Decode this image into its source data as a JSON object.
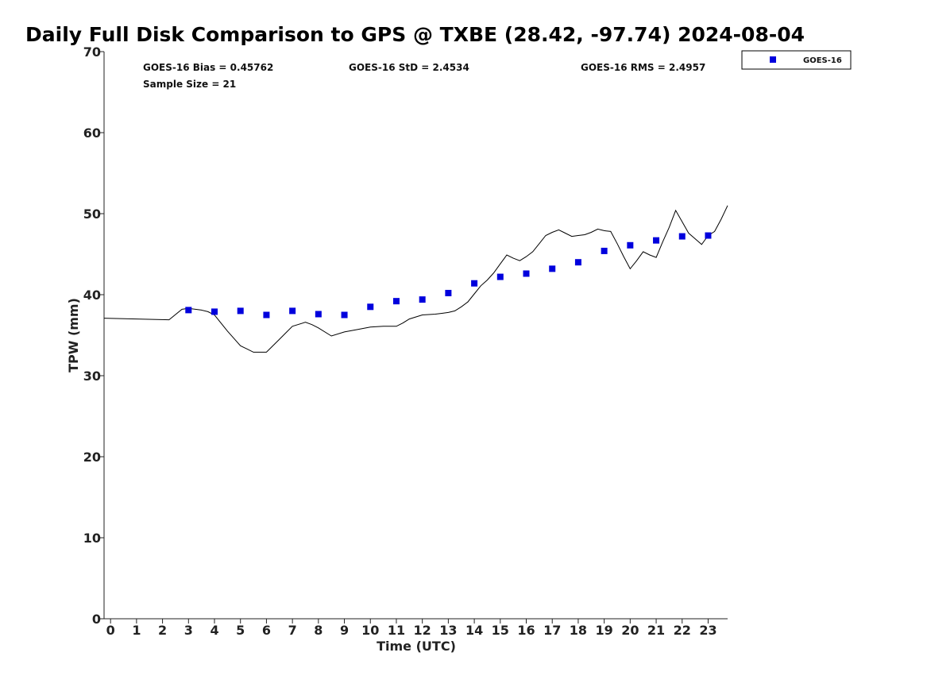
{
  "chart_data": {
    "type": "scatter",
    "title": "Daily Full Disk Comparison to GPS @ TXBE (28.42, -97.74) 2024-08-04",
    "xlabel": "Time (UTC)",
    "ylabel": "TPW (mm)",
    "xlim": [
      -0.25,
      23.75
    ],
    "ylim": [
      0,
      70
    ],
    "xticks": [
      "0",
      "1",
      "2",
      "3",
      "4",
      "5",
      "6",
      "7",
      "8",
      "9",
      "10",
      "11",
      "12",
      "13",
      "14",
      "15",
      "16",
      "17",
      "18",
      "19",
      "20",
      "21",
      "22",
      "23"
    ],
    "yticks": [
      "0",
      "10",
      "20",
      "30",
      "40",
      "50",
      "60",
      "70"
    ],
    "grid": false,
    "legend": {
      "position": "top-right-outside",
      "entries": [
        "GOES-16"
      ]
    },
    "stats": [
      "GOES-16 Bias = 0.45762",
      "GOES-16 StD = 2.4534",
      "GOES-16 RMS = 2.4957",
      "Sample Size = 21"
    ],
    "series": [
      {
        "name": "GOES-16",
        "kind": "scatter",
        "color": "#0000dd",
        "marker": "square",
        "x": [
          3,
          4,
          5,
          6,
          7,
          8,
          9,
          10,
          11,
          12,
          13,
          14,
          15,
          16,
          17,
          18,
          19,
          20,
          21,
          22,
          23
        ],
        "y": [
          38.1,
          37.9,
          38.0,
          37.5,
          38.0,
          37.6,
          37.5,
          38.5,
          39.2,
          39.4,
          40.2,
          41.4,
          42.2,
          42.6,
          43.2,
          44.0,
          45.4,
          46.1,
          46.7,
          47.2,
          47.3
        ]
      },
      {
        "kind": "line",
        "color": "#000000",
        "x": [
          -0.25,
          2.25,
          2.75,
          3.0,
          3.5,
          3.75,
          4.0,
          4.5,
          4.75,
          5.0,
          5.25,
          5.5,
          6.0,
          6.5,
          6.75,
          7.0,
          7.5,
          7.75,
          8.0,
          8.5,
          9.0,
          9.5,
          10.0,
          10.5,
          10.75,
          11.0,
          11.25,
          11.5,
          12.0,
          12.5,
          12.75,
          13.0,
          13.25,
          13.5,
          13.75,
          14.0,
          14.25,
          14.5,
          14.75,
          15.0,
          15.25,
          15.5,
          15.75,
          16.0,
          16.25,
          16.5,
          16.75,
          17.0,
          17.25,
          17.5,
          17.75,
          18.0,
          18.25,
          18.5,
          18.75,
          19.0,
          19.25,
          19.5,
          19.75,
          20.0,
          20.25,
          20.5,
          20.75,
          21.0,
          21.25,
          21.5,
          21.75,
          22.0,
          22.25,
          22.5,
          22.75,
          23.0,
          23.25,
          23.5,
          23.75
        ],
        "y": [
          37.1,
          36.9,
          38.2,
          38.3,
          38.1,
          37.9,
          37.5,
          35.5,
          34.6,
          33.7,
          33.3,
          32.9,
          32.9,
          34.5,
          35.3,
          36.1,
          36.6,
          36.3,
          35.9,
          34.9,
          35.4,
          35.7,
          36.0,
          36.1,
          36.1,
          36.1,
          36.5,
          37.0,
          37.5,
          37.6,
          37.7,
          37.8,
          38.0,
          38.5,
          39.1,
          40.1,
          41.1,
          41.8,
          42.7,
          43.8,
          44.9,
          44.5,
          44.2,
          44.7,
          45.3,
          46.3,
          47.3,
          47.7,
          48.0,
          47.6,
          47.2,
          47.3,
          47.4,
          47.7,
          48.1,
          47.9,
          47.8,
          46.3,
          44.7,
          43.2,
          44.2,
          45.3,
          44.9,
          44.6,
          46.5,
          48.3,
          50.4,
          49.0,
          47.6,
          46.9,
          46.2,
          47.3,
          47.8,
          49.3,
          51.0
        ]
      }
    ]
  }
}
